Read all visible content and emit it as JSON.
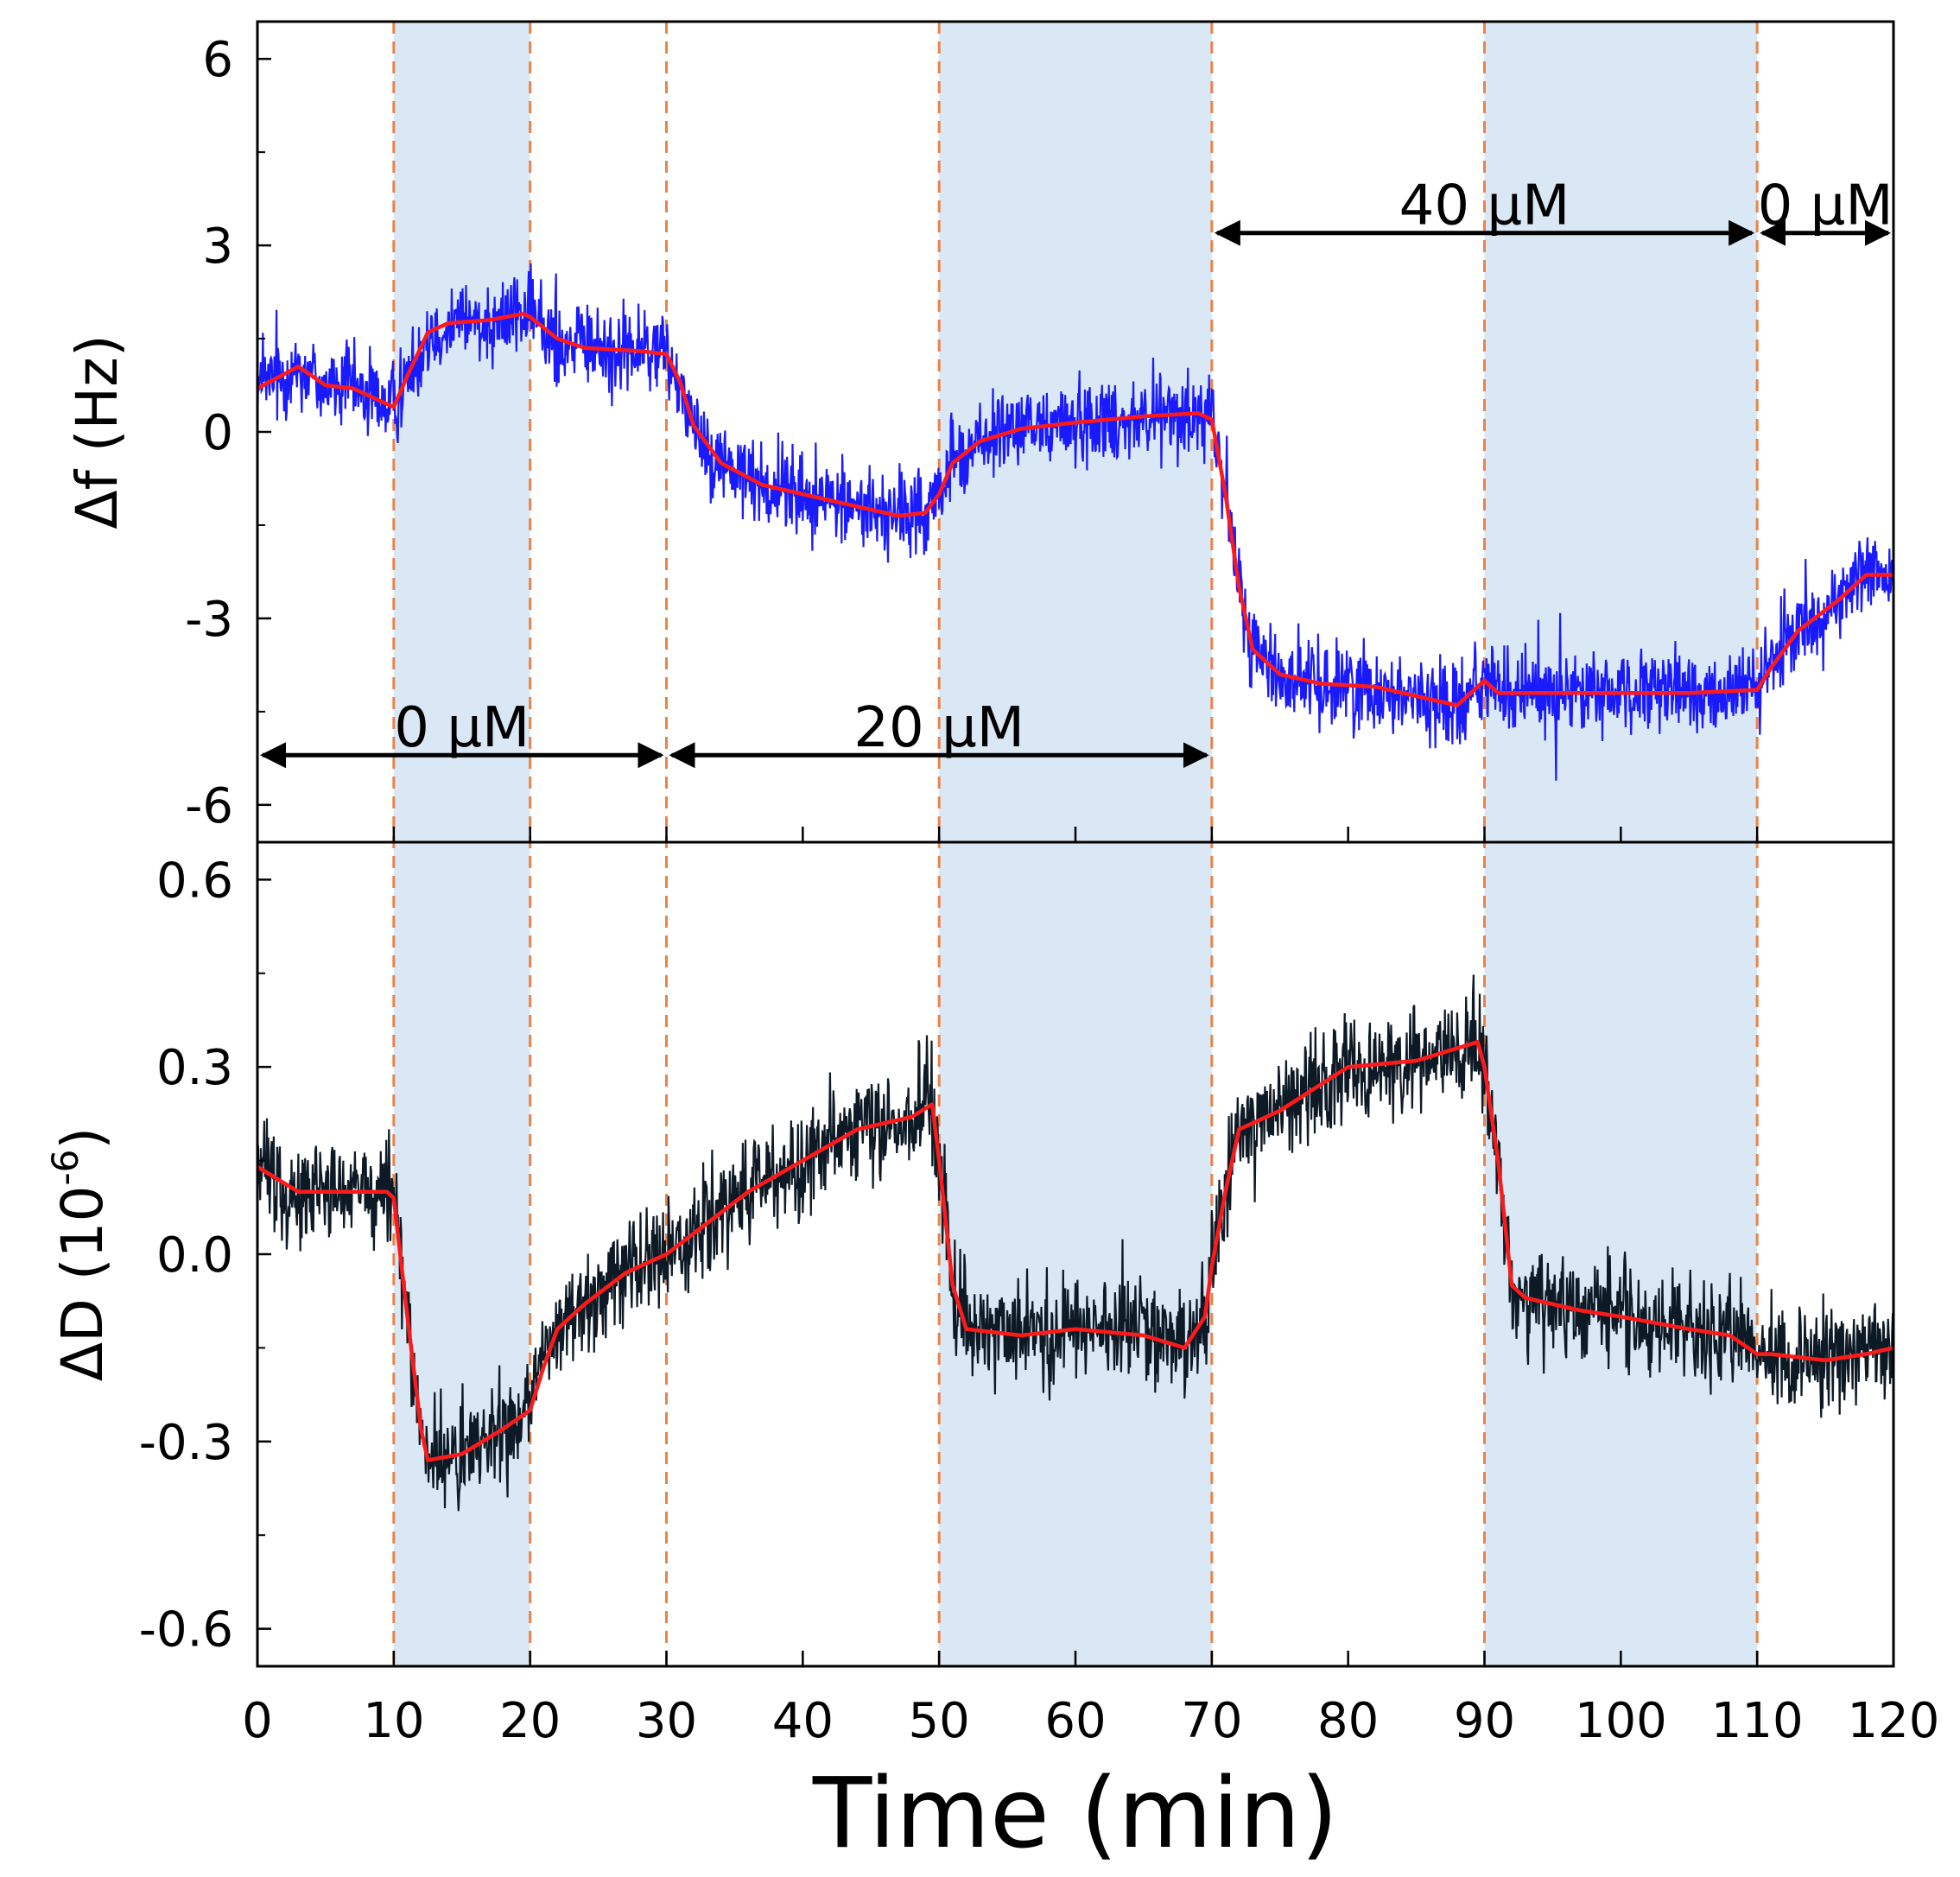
{
  "chart_data": {
    "type": "line",
    "x_axis": {
      "label": "Time (min)",
      "range": [
        0,
        120
      ],
      "ticks": [
        0,
        10,
        20,
        30,
        40,
        50,
        60,
        70,
        80,
        90,
        100,
        110,
        120
      ],
      "tick_labels": [
        "0",
        "10",
        "20",
        "30",
        "40",
        "50",
        "60",
        "70",
        "80",
        "90",
        "100",
        "110",
        "120"
      ]
    },
    "injection_times": [
      10,
      20,
      30,
      50,
      70,
      90,
      110
    ],
    "shaded_intervals": [
      [
        10,
        20
      ],
      [
        50,
        70
      ],
      [
        90,
        110
      ]
    ],
    "colors": {
      "shade": "#dae8f5",
      "dashed_lines": "#e8834a",
      "df_raw": "#1a1aff",
      "dd_raw": "#0d1a26",
      "fit": "#ff1a1a",
      "arrows": "#000000"
    },
    "panels": [
      {
        "id": "frequency",
        "ylabel": "Δf (Hz)",
        "ylim": [
          -6.6,
          6.6
        ],
        "yticks": [
          -6,
          -3,
          0,
          3,
          6
        ],
        "ytick_labels": [
          "-6",
          "-3",
          "0",
          "3",
          "6"
        ],
        "minor_yticks": [
          -4.5,
          -1.5,
          1.5,
          4.5
        ],
        "noise": 0.75,
        "series": [
          {
            "name": "Δf raw",
            "color": "#1a1aff",
            "smoothed": [
              [
                0,
                0.7
              ],
              [
                3,
                1.05
              ],
              [
                5,
                0.75
              ],
              [
                7,
                0.7
              ],
              [
                9,
                0.5
              ],
              [
                10,
                0.4
              ],
              [
                11,
                0.9
              ],
              [
                12.5,
                1.6
              ],
              [
                14,
                1.75
              ],
              [
                17,
                1.8
              ],
              [
                19.5,
                1.9
              ],
              [
                20,
                1.85
              ],
              [
                22,
                1.5
              ],
              [
                24,
                1.35
              ],
              [
                28,
                1.3
              ],
              [
                30,
                1.25
              ],
              [
                31,
                0.8
              ],
              [
                32,
                0.1
              ],
              [
                34,
                -0.5
              ],
              [
                37,
                -0.85
              ],
              [
                40,
                -1.0
              ],
              [
                44,
                -1.2
              ],
              [
                47,
                -1.35
              ],
              [
                49,
                -1.3
              ],
              [
                50,
                -1.0
              ],
              [
                51,
                -0.5
              ],
              [
                53,
                -0.15
              ],
              [
                56,
                0.05
              ],
              [
                60,
                0.15
              ],
              [
                65,
                0.25
              ],
              [
                69,
                0.3
              ],
              [
                70,
                0.2
              ],
              [
                71,
                -1.0
              ],
              [
                72,
                -2.5
              ],
              [
                73,
                -3.5
              ],
              [
                75,
                -3.9
              ],
              [
                78,
                -4.05
              ],
              [
                82,
                -4.1
              ],
              [
                86,
                -4.3
              ],
              [
                88,
                -4.4
              ],
              [
                89.5,
                -4.1
              ],
              [
                90,
                -4.0
              ],
              [
                91,
                -4.2
              ],
              [
                95,
                -4.2
              ],
              [
                100,
                -4.2
              ],
              [
                105,
                -4.2
              ],
              [
                110,
                -4.15
              ],
              [
                111,
                -3.8
              ],
              [
                113,
                -3.2
              ],
              [
                116,
                -2.7
              ],
              [
                118,
                -2.3
              ],
              [
                120,
                -2.3
              ]
            ]
          }
        ],
        "arrows": [
          {
            "label": "0 μM",
            "from": 0,
            "to": 30,
            "y": -5.2,
            "label_y": -4.75
          },
          {
            "label": "20 μM",
            "from": 30,
            "to": 70,
            "y": -5.2,
            "label_y": -4.75
          },
          {
            "label": "40 μM",
            "from": 70,
            "to": 110,
            "y": 3.2,
            "label_y": 3.65
          },
          {
            "label": "0 μM",
            "from": 110,
            "to": 120,
            "y": 3.2,
            "label_y": 3.65
          }
        ]
      },
      {
        "id": "dissipation",
        "ylabel": "ΔD (10",
        "ylabel_exponent": "-6",
        "ylabel_suffix": ")",
        "ylim": [
          -0.66,
          0.66
        ],
        "yticks": [
          -0.6,
          -0.3,
          0.0,
          0.3,
          0.6
        ],
        "ytick_labels": [
          "-0.6",
          "-0.3",
          "0.0",
          "0.3",
          "0.6"
        ],
        "minor_yticks": [
          -0.45,
          -0.15,
          0.15,
          0.45
        ],
        "noise": 0.09,
        "series": [
          {
            "name": "ΔD raw",
            "color": "#0d1a26",
            "smoothed": [
              [
                0,
                0.14
              ],
              [
                3,
                0.1
              ],
              [
                6,
                0.1
              ],
              [
                9.5,
                0.1
              ],
              [
                10,
                0.09
              ],
              [
                11,
                -0.1
              ],
              [
                12,
                -0.28
              ],
              [
                12.5,
                -0.33
              ],
              [
                15,
                -0.32
              ],
              [
                18,
                -0.28
              ],
              [
                20,
                -0.25
              ],
              [
                21,
                -0.18
              ],
              [
                22,
                -0.12
              ],
              [
                24,
                -0.08
              ],
              [
                27,
                -0.03
              ],
              [
                30,
                0.0
              ],
              [
                33,
                0.05
              ],
              [
                36,
                0.1
              ],
              [
                40,
                0.15
              ],
              [
                44,
                0.2
              ],
              [
                48,
                0.22
              ],
              [
                49.5,
                0.24
              ],
              [
                50,
                0.15
              ],
              [
                51,
                -0.05
              ],
              [
                52,
                -0.12
              ],
              [
                56,
                -0.13
              ],
              [
                60,
                -0.12
              ],
              [
                65,
                -0.13
              ],
              [
                68,
                -0.15
              ],
              [
                69.5,
                -0.1
              ],
              [
                70,
                -0.02
              ],
              [
                71,
                0.1
              ],
              [
                72,
                0.2
              ],
              [
                75,
                0.23
              ],
              [
                80,
                0.3
              ],
              [
                85,
                0.31
              ],
              [
                89.5,
                0.34
              ],
              [
                90,
                0.3
              ],
              [
                91,
                0.15
              ],
              [
                92,
                -0.05
              ],
              [
                93,
                -0.07
              ],
              [
                97,
                -0.09
              ],
              [
                100,
                -0.1
              ],
              [
                105,
                -0.12
              ],
              [
                108,
                -0.13
              ],
              [
                110,
                -0.16
              ],
              [
                111,
                -0.16
              ],
              [
                115,
                -0.17
              ],
              [
                118,
                -0.16
              ],
              [
                120,
                -0.15
              ]
            ]
          }
        ]
      }
    ]
  }
}
